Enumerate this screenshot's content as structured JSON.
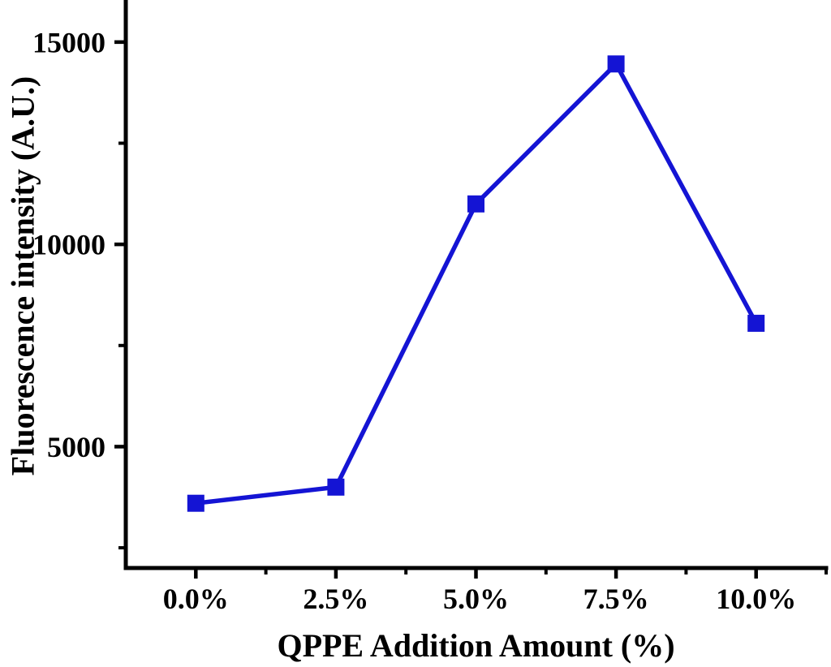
{
  "chart_data": {
    "type": "line",
    "title": "",
    "xlabel": "QPPE Addition Amount (%)",
    "ylabel": "Fluorescence intensity (A.U.)",
    "x_categories": [
      "0.0%",
      "2.5%",
      "5.0%",
      "7.5%",
      "10.0%"
    ],
    "x_values": [
      0,
      2.5,
      5,
      7.5,
      10
    ],
    "series": [
      {
        "name": "Fluorescence intensity",
        "values": [
          3600,
          4000,
          11000,
          14460,
          8050
        ],
        "color": "#1414d4",
        "marker": "square",
        "marker_size": 21,
        "line_width": 5.5
      }
    ],
    "xlim": [
      -1.25,
      11.25
    ],
    "ylim": [
      2000,
      16000
    ],
    "y_major_ticks": [
      5000,
      10000,
      15000
    ],
    "y_tick_labels": [
      "5000",
      "10000",
      "15000"
    ],
    "y_minor_ticks": [
      2500,
      7500,
      12500
    ],
    "x_major_ticks": [
      0,
      2.5,
      5,
      7.5,
      10
    ],
    "x_minor_ticks": [
      1.25,
      3.75,
      6.25,
      8.75,
      11.25
    ],
    "grid": false,
    "legend": "none",
    "axis_color": "#000000",
    "text_color": "#000000",
    "background": "#ffffff"
  }
}
